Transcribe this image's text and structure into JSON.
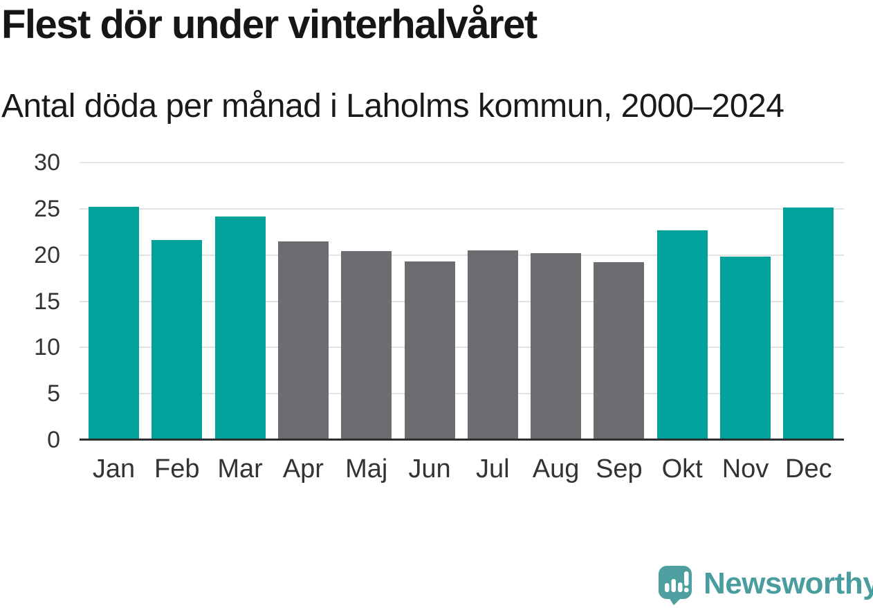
{
  "title": "Flest dör under vinterhalvåret",
  "subtitle": "Antal döda per månad i Laholms kommun, 2000–2024",
  "branding": {
    "name": "Newsworthy",
    "icon": "speech-bubble-with-bar-chart-and-exclamation",
    "text_color": "#4a9d9e",
    "icon_color": "#4d9fa0"
  },
  "colors": {
    "highlight_bar": "#00a29b",
    "muted_bar": "#6c6c71",
    "gridline": "#e2e2e2",
    "axis_line": "#2e2e2e",
    "tick_text": "#333333",
    "title_text": "#161616"
  },
  "chart_data": {
    "type": "bar",
    "title": "Flest dör under vinterhalvåret",
    "subtitle": "Antal döda per månad i Laholms kommun, 2000–2024",
    "categories": [
      "Jan",
      "Feb",
      "Mar",
      "Apr",
      "Maj",
      "Jun",
      "Jul",
      "Aug",
      "Sep",
      "Okt",
      "Nov",
      "Dec"
    ],
    "values": [
      25.2,
      21.6,
      24.2,
      21.5,
      20.4,
      19.3,
      20.5,
      20.2,
      19.2,
      22.7,
      19.8,
      25.1
    ],
    "highlighted_categories": [
      "Jan",
      "Feb",
      "Mar",
      "Okt",
      "Nov",
      "Dec"
    ],
    "highlight_color": "#00a29b",
    "base_color": "#6c6c71",
    "xlabel": "",
    "ylabel": "",
    "ylim": [
      0,
      30
    ],
    "yticks": [
      0,
      5,
      10,
      15,
      20,
      25,
      30
    ],
    "grid": "horizontal",
    "legend": "none"
  }
}
